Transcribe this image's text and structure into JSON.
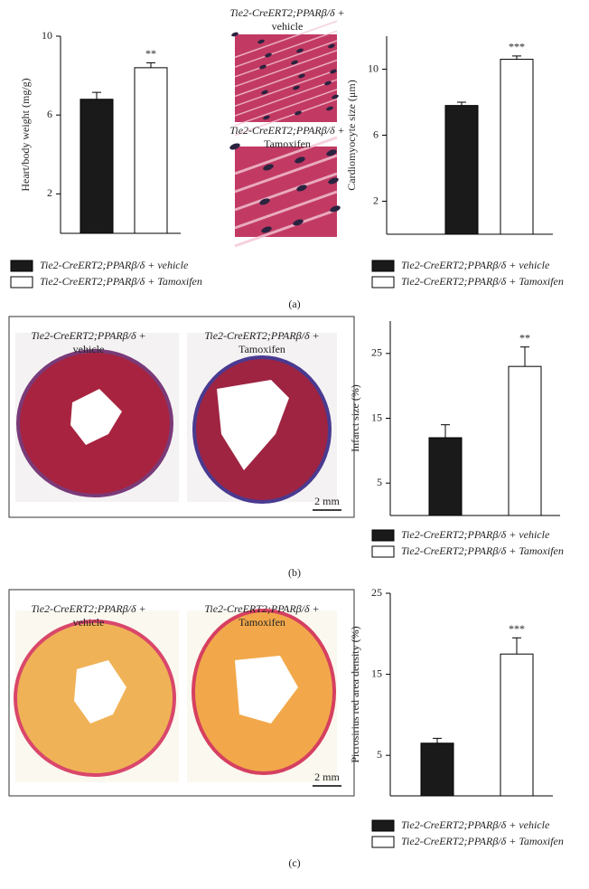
{
  "chart_data": [
    {
      "type": "bar",
      "ylabel": "Heart/body weight (mg/g)",
      "ylim": [
        0,
        10
      ],
      "yticks": [
        2,
        6,
        10
      ],
      "series": [
        {
          "name": "Tie2-CreERT2;PPARβ/δ + vehicle",
          "color": "#1a1a1a",
          "values": [
            6.8
          ],
          "errors": [
            0.35
          ]
        },
        {
          "name": "Tie2-CreERT2;PPARβ/δ + Tamoxifen",
          "color": "#ffffff",
          "values": [
            8.4
          ],
          "errors": [
            0.25
          ],
          "annotation": "**"
        }
      ]
    },
    {
      "type": "bar",
      "ylabel": "Cardiomyocyte size (μm)",
      "ylim": [
        0,
        12
      ],
      "yticks": [
        2,
        6,
        10
      ],
      "series": [
        {
          "name": "Tie2-CreERT2;PPARβ/δ + vehicle",
          "color": "#1a1a1a",
          "values": [
            7.8
          ],
          "errors": [
            0.2
          ]
        },
        {
          "name": "Tie2-CreERT2;PPARβ/δ + Tamoxifen",
          "color": "#ffffff",
          "values": [
            10.6
          ],
          "errors": [
            0.2
          ],
          "annotation": "***"
        }
      ]
    },
    {
      "type": "bar",
      "ylabel": "Infarct size (%)",
      "ylim": [
        0,
        30
      ],
      "yticks": [
        5,
        15,
        25
      ],
      "series": [
        {
          "name": "Tie2-CreERT2;PPARβ/δ + vehicle",
          "color": "#1a1a1a",
          "values": [
            12
          ],
          "errors": [
            2
          ]
        },
        {
          "name": "Tie2-CreERT2;PPARβ/δ + Tamoxifen",
          "color": "#ffffff",
          "values": [
            23
          ],
          "errors": [
            3
          ],
          "annotation": "**"
        }
      ]
    },
    {
      "type": "bar",
      "ylabel": "Picrosirius red area density (%)",
      "ylim": [
        0,
        25
      ],
      "yticks": [
        5,
        15,
        25
      ],
      "series": [
        {
          "name": "Tie2-CreERT2;PPARβ/δ + vehicle",
          "color": "#1a1a1a",
          "values": [
            6.5
          ],
          "errors": [
            0.6
          ]
        },
        {
          "name": "Tie2-CreERT2;PPARβ/δ + Tamoxifen",
          "color": "#ffffff",
          "values": [
            17.5
          ],
          "errors": [
            2
          ],
          "annotation": "***"
        }
      ]
    }
  ],
  "figure": {
    "panels": [
      {
        "label": "(a)",
        "captions": [
          [
            "Tie2-CreERT2;PPARβ/δ +",
            "vehicle"
          ],
          [
            "Tie2-CreERT2;PPARβ/δ +",
            "Tamoxifen"
          ]
        ]
      },
      {
        "label": "(b)",
        "captions": [
          [
            "Tie2-CreERT2;PPARβ/δ +",
            "vehicle"
          ],
          [
            "Tie2-CreERT2;PPARβ/δ +",
            "Tamoxifen"
          ]
        ],
        "scale_bar": "2 mm"
      },
      {
        "label": "(c)",
        "captions": [
          [
            "Tie2-CreERT2;PPARβ/δ +",
            "vehicle"
          ],
          [
            "Tie2-CreERT2;PPARβ/δ +",
            "Tamoxifen"
          ]
        ],
        "scale_bar": "2 mm"
      }
    ]
  }
}
